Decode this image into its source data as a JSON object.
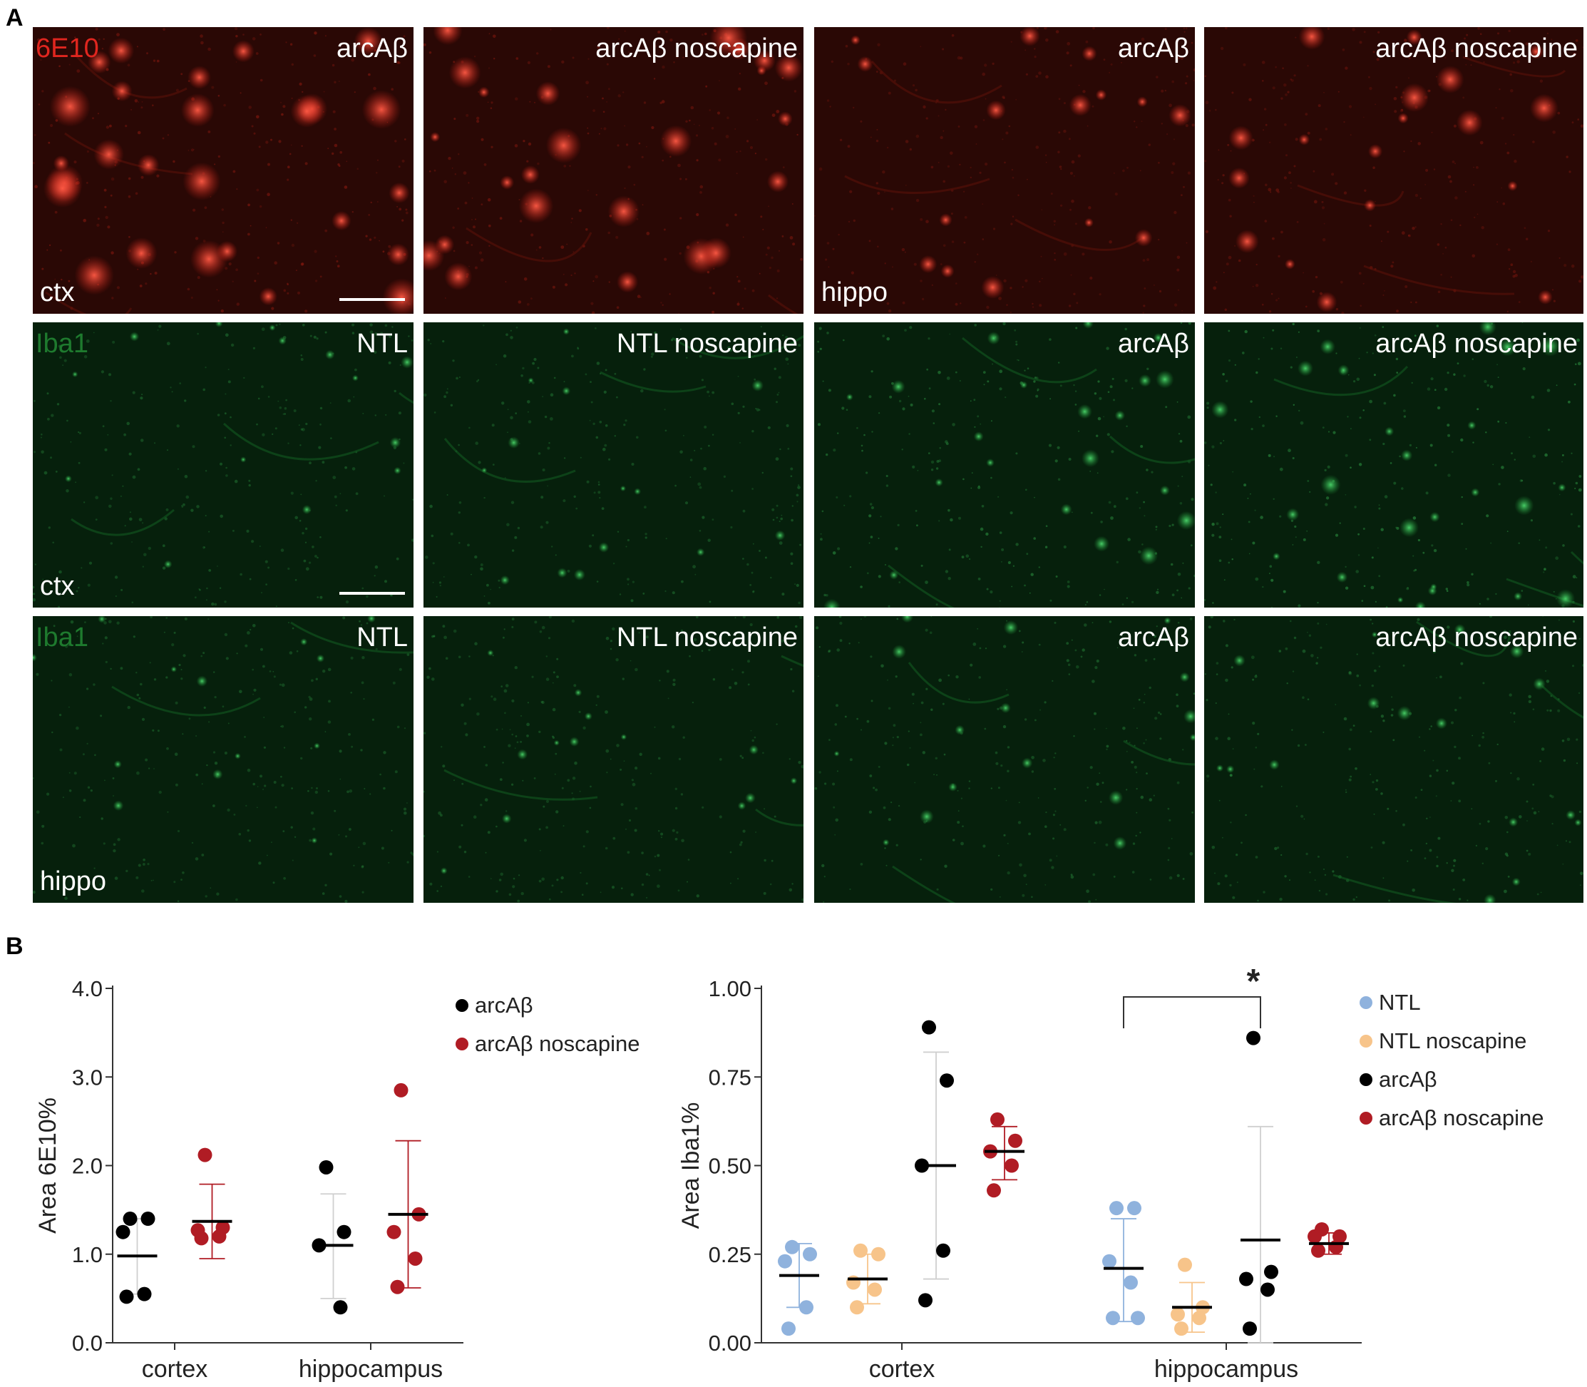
{
  "panel_a": {
    "letter": "A",
    "rows": [
      {
        "stain": "6E10",
        "stain_color": "#e0261f",
        "tissue": "red",
        "cells": [
          {
            "label": "arcAβ",
            "region": "ctx",
            "scale_bar": true,
            "intensity": 0.9
          },
          {
            "label": "arcAβ noscapine",
            "region": "",
            "scale_bar": false,
            "intensity": 0.8
          },
          {
            "label": "arcAβ",
            "region": "hippo",
            "scale_bar": false,
            "intensity": 0.4
          },
          {
            "label": "arcAβ noscapine",
            "region": "",
            "scale_bar": false,
            "intensity": 0.55
          }
        ]
      },
      {
        "stain": "Iba1",
        "stain_color": "#1e7a2e",
        "tissue": "green",
        "cells": [
          {
            "label": "NTL",
            "region": "ctx",
            "scale_bar": true,
            "intensity": 0.35
          },
          {
            "label": "NTL noscapine",
            "region": "",
            "scale_bar": false,
            "intensity": 0.35
          },
          {
            "label": "arcAβ",
            "region": "",
            "scale_bar": false,
            "intensity": 0.7
          },
          {
            "label": "arcAβ noscapine",
            "region": "",
            "scale_bar": false,
            "intensity": 0.85
          }
        ]
      },
      {
        "stain": "Iba1",
        "stain_color": "#1e7a2e",
        "tissue": "green",
        "cells": [
          {
            "label": "NTL",
            "region": "hippo",
            "scale_bar": false,
            "intensity": 0.3
          },
          {
            "label": "NTL noscapine",
            "region": "",
            "scale_bar": false,
            "intensity": 0.3
          },
          {
            "label": "arcAβ",
            "region": "",
            "scale_bar": false,
            "intensity": 0.45
          },
          {
            "label": "arcAβ noscapine",
            "region": "",
            "scale_bar": false,
            "intensity": 0.45
          }
        ]
      }
    ]
  },
  "panel_b": {
    "letter": "B"
  },
  "chart_data": [
    {
      "type": "scatter",
      "title": "",
      "ylabel": "Area 6E10%",
      "xlabel": "",
      "ylim": [
        0,
        4
      ],
      "yticks": [
        "0.0",
        "1.0",
        "2.0",
        "3.0",
        "4.0"
      ],
      "categories": [
        "cortex",
        "hippocampus"
      ],
      "legend_placement": "top-right",
      "grid": false,
      "series": [
        {
          "name": "arcAβ",
          "color": "#000000",
          "groups": [
            {
              "category": "cortex",
              "values": [
                1.4,
                1.4,
                1.25,
                0.55,
                0.52
              ],
              "mean": 0.98,
              "sd_low": 0.55,
              "sd_high": 1.4
            },
            {
              "category": "hippocampus",
              "values": [
                1.98,
                1.25,
                1.1,
                0.4
              ],
              "mean": 1.1,
              "sd_low": 0.5,
              "sd_high": 1.68
            }
          ]
        },
        {
          "name": "arcAβ noscapine",
          "color": "#b01c24",
          "groups": [
            {
              "category": "cortex",
              "values": [
                2.12,
                1.3,
                1.27,
                1.2,
                1.18
              ],
              "mean": 1.37,
              "sd_low": 0.95,
              "sd_high": 1.79
            },
            {
              "category": "hippocampus",
              "values": [
                2.85,
                1.45,
                1.25,
                0.95,
                0.63
              ],
              "mean": 1.45,
              "sd_low": 0.62,
              "sd_high": 2.28
            }
          ]
        }
      ]
    },
    {
      "type": "scatter",
      "title": "",
      "ylabel": "Area Iba1%",
      "xlabel": "",
      "ylim": [
        0,
        1
      ],
      "yticks": [
        "0.00",
        "0.25",
        "0.50",
        "0.75",
        "1.00"
      ],
      "categories": [
        "cortex",
        "hippocampus"
      ],
      "legend_placement": "top-right",
      "grid": false,
      "significance": {
        "label": "*",
        "from_series": 0,
        "to_series": 2,
        "category": "hippocampus"
      },
      "series": [
        {
          "name": "NTL",
          "color": "#8fb2dd",
          "groups": [
            {
              "category": "cortex",
              "values": [
                0.27,
                0.25,
                0.23,
                0.1,
                0.04
              ],
              "mean": 0.19,
              "sd_low": 0.1,
              "sd_high": 0.28
            },
            {
              "category": "hippocampus",
              "values": [
                0.38,
                0.38,
                0.23,
                0.17,
                0.07,
                0.07
              ],
              "mean": 0.21,
              "sd_low": 0.06,
              "sd_high": 0.35
            }
          ]
        },
        {
          "name": "NTL noscapine",
          "color": "#f7c48a",
          "groups": [
            {
              "category": "cortex",
              "values": [
                0.26,
                0.25,
                0.17,
                0.15,
                0.1
              ],
              "mean": 0.18,
              "sd_low": 0.11,
              "sd_high": 0.25
            },
            {
              "category": "hippocampus",
              "values": [
                0.22,
                0.1,
                0.08,
                0.07,
                0.04
              ],
              "mean": 0.1,
              "sd_low": 0.03,
              "sd_high": 0.17
            }
          ]
        },
        {
          "name": "arcAβ",
          "color": "#000000",
          "groups": [
            {
              "category": "cortex",
              "values": [
                0.89,
                0.74,
                0.5,
                0.26,
                0.12
              ],
              "mean": 0.5,
              "sd_low": 0.18,
              "sd_high": 0.82
            },
            {
              "category": "hippocampus",
              "values": [
                0.86,
                0.2,
                0.18,
                0.15,
                0.04
              ],
              "mean": 0.29,
              "sd_low": 0.0,
              "sd_high": 0.61
            }
          ]
        },
        {
          "name": "arcAβ noscapine",
          "color": "#b01c24",
          "groups": [
            {
              "category": "cortex",
              "values": [
                0.63,
                0.57,
                0.54,
                0.5,
                0.43
              ],
              "mean": 0.54,
              "sd_low": 0.46,
              "sd_high": 0.61
            },
            {
              "category": "hippocampus",
              "values": [
                0.32,
                0.3,
                0.3,
                0.27,
                0.26
              ],
              "mean": 0.28,
              "sd_low": 0.25,
              "sd_high": 0.31
            }
          ]
        }
      ]
    }
  ]
}
